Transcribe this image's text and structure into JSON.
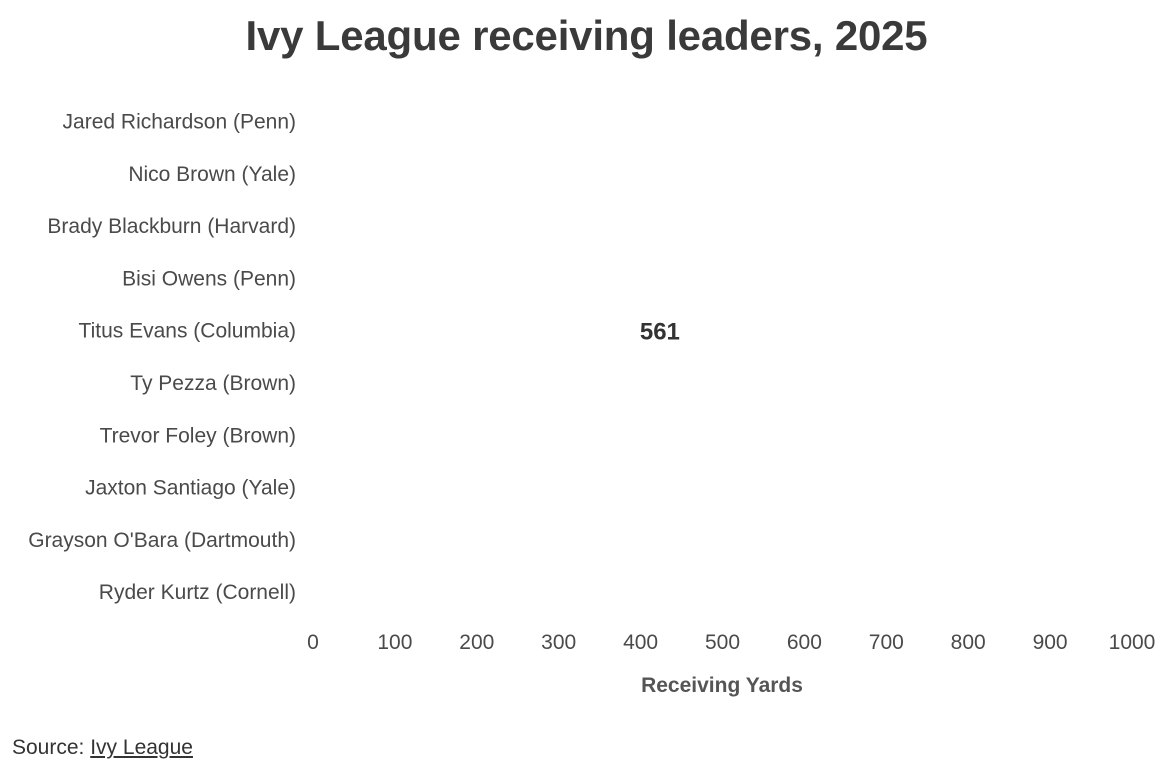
{
  "chart_data": {
    "type": "bar",
    "orientation": "horizontal",
    "title": "Ivy League receiving leaders, 2025",
    "categories": [
      "Jared Richardson (Penn)",
      "Nico Brown (Yale)",
      "Brady Blackburn (Harvard)",
      "Bisi Owens (Penn)",
      "Titus Evans (Columbia)",
      "Ty Pezza (Brown)",
      "Trevor Foley (Brown)",
      "Jaxton Santiago (Yale)",
      "Grayson O'Bara (Dartmouth)",
      "Ryder Kurtz (Cornell)"
    ],
    "values": [
      null,
      null,
      null,
      null,
      561,
      null,
      null,
      null,
      null,
      null
    ],
    "data_labels": [
      "",
      "",
      "",
      "",
      "561",
      "",
      "",
      "",
      "",
      ""
    ],
    "xlabel": "Receiving Yards",
    "ylabel": "",
    "xlim": [
      0,
      1000
    ],
    "xticks": [
      0,
      100,
      200,
      300,
      400,
      500,
      600,
      700,
      800,
      900,
      1000
    ],
    "tick_labels": [
      "0",
      "100",
      "200",
      "300",
      "400",
      "500",
      "600",
      "700",
      "800",
      "900",
      "1000"
    ],
    "grid": false,
    "legend": "none"
  },
  "source": {
    "prefix": "Source: ",
    "link_text": "Ivy League"
  }
}
